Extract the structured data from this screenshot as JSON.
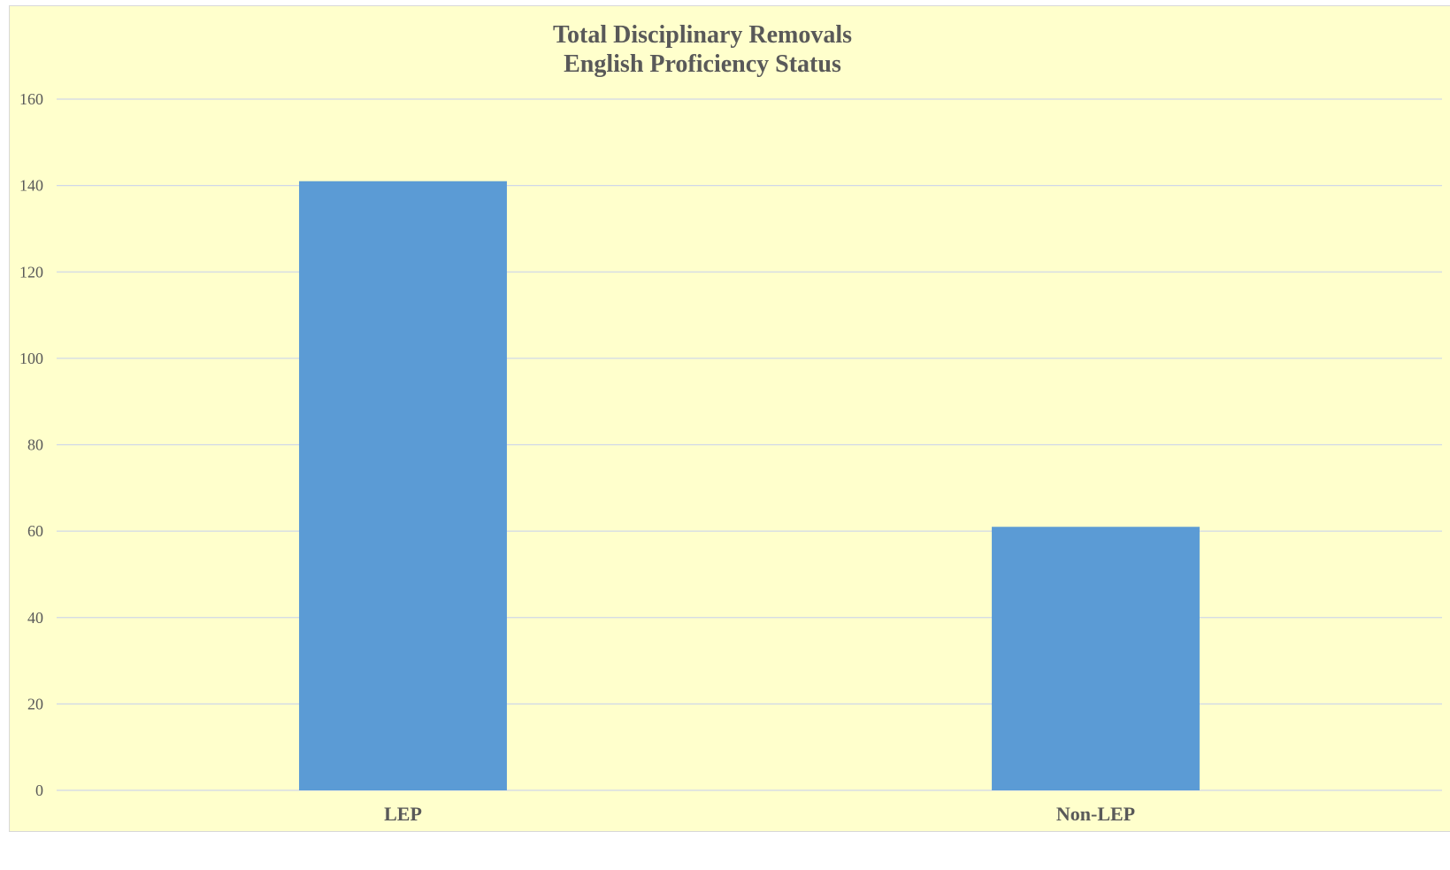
{
  "chart_data": {
    "type": "bar",
    "title_lines": [
      "Total Disciplinary Removals",
      "English Proficiency Status"
    ],
    "categories": [
      "LEP",
      "Non-LEP"
    ],
    "values": [
      141,
      61
    ],
    "xlabel": "",
    "ylabel": "",
    "ylim": [
      0,
      160
    ],
    "yticks": [
      0,
      20,
      40,
      60,
      80,
      100,
      120,
      140,
      160
    ],
    "grid": true,
    "legend": "none",
    "colors": {
      "bar": "#5b9bd5",
      "background": "#ffffcc",
      "gridline": "#d0d8e8",
      "text": "#595959"
    }
  }
}
